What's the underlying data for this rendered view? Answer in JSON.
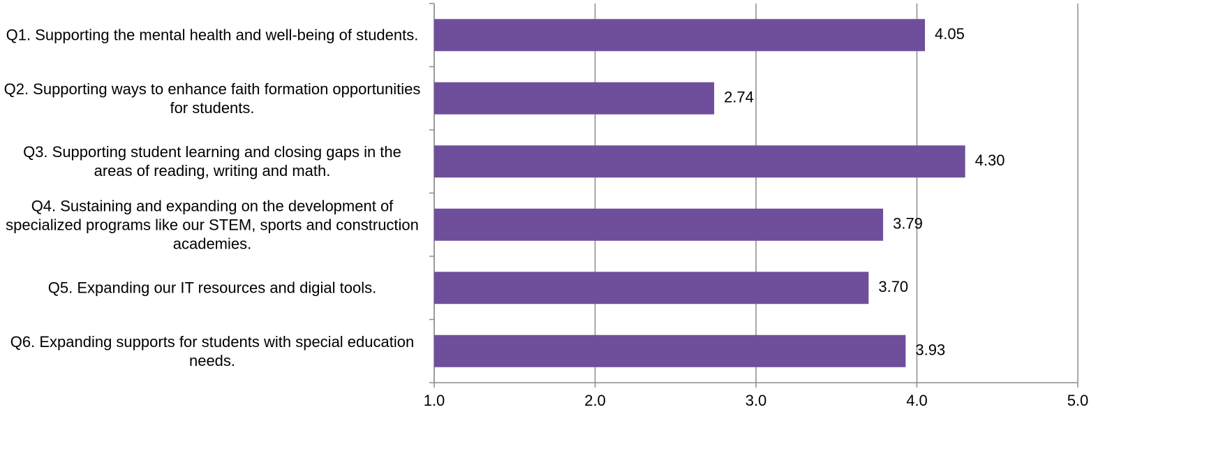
{
  "chart_data": {
    "type": "hbar",
    "categories": [
      "Q1. Supporting the mental health and well-being of students.",
      "Q2. Supporting ways to enhance faith formation opportunities for students.",
      "Q3. Supporting student learning and closing gaps in the areas of reading, writing and math.",
      "Q4. Sustaining and expanding on the development of specialized programs like our STEM, sports and construction academies.",
      "Q5. Expanding our IT resources and digial tools.",
      "Q6. Expanding supports for students with special education needs."
    ],
    "values": [
      4.05,
      2.74,
      4.3,
      3.79,
      3.7,
      3.93
    ],
    "value_labels": [
      "4.05",
      "2.74",
      "4.30",
      "3.79",
      "3.70",
      "3.93"
    ],
    "color": "#6f4f9c",
    "xlim": [
      1,
      5
    ],
    "xticks": [
      {
        "value": 1,
        "label": "1.0"
      },
      {
        "value": 2,
        "label": "2.0"
      },
      {
        "value": 3,
        "label": "3.0"
      },
      {
        "value": 4,
        "label": "4.0"
      },
      {
        "value": 5,
        "label": "5.0"
      }
    ],
    "grid": true
  }
}
